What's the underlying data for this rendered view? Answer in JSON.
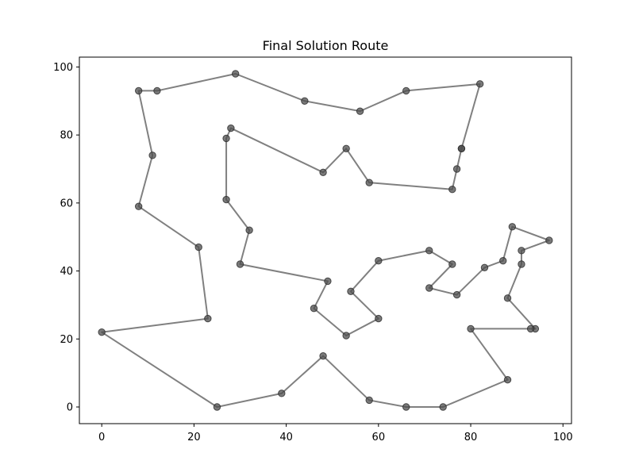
{
  "chart_data": {
    "type": "line",
    "title": "Final Solution Route",
    "xlabel": "",
    "ylabel": "",
    "xlim": [
      -4.85,
      101.85
    ],
    "ylim": [
      -4.9,
      102.9
    ],
    "x_ticks": [
      0,
      20,
      40,
      60,
      80,
      100
    ],
    "y_ticks": [
      0,
      20,
      40,
      60,
      80,
      100
    ],
    "grid": false,
    "legend": "none",
    "colors": {
      "route": "#808080",
      "point_fill": "#4d4d4d",
      "point_edge": "#2b2b2b",
      "axes": "#000000"
    },
    "series": [
      {
        "x": [
          78,
          77,
          76,
          58,
          53,
          48,
          28,
          27,
          27,
          32,
          30,
          49,
          46,
          53,
          60,
          54,
          60,
          71,
          76,
          71,
          77,
          83,
          87,
          89,
          97,
          91,
          91,
          88,
          94,
          93,
          80,
          88,
          74,
          66,
          58,
          48,
          39,
          25,
          0,
          23,
          21,
          8,
          11,
          8,
          12,
          29,
          44,
          56,
          66,
          82,
          78
        ],
        "y": [
          76,
          70,
          64,
          66,
          76,
          69,
          82,
          79,
          61,
          52,
          42,
          37,
          29,
          21,
          26,
          34,
          43,
          46,
          42,
          35,
          33,
          41,
          43,
          53,
          49,
          46,
          42,
          32,
          23,
          23,
          23,
          8,
          0,
          0,
          2,
          15,
          4,
          0,
          22,
          26,
          47,
          59,
          74,
          93,
          93,
          98,
          90,
          87,
          93,
          95,
          76
        ]
      }
    ]
  }
}
